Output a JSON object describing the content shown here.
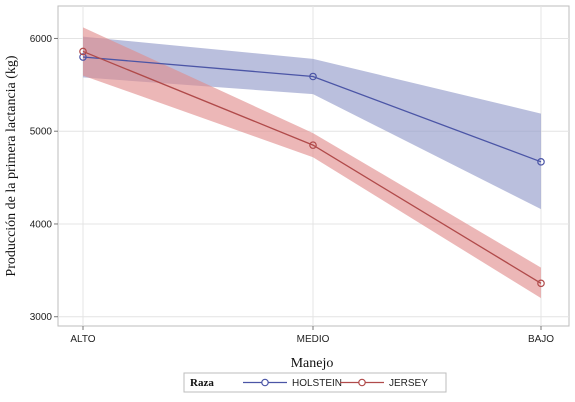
{
  "chart_data": {
    "type": "line",
    "xlabel": "Manejo",
    "ylabel": "Producción de la primera lactancia (kg)",
    "categories": [
      "ALTO",
      "MEDIO",
      "BAJO"
    ],
    "ylim": [
      2900,
      6350
    ],
    "yticks": [
      3000,
      4000,
      5000,
      6000
    ],
    "grid": true,
    "legend": {
      "title": "Raza",
      "placement": "bottom"
    },
    "series": [
      {
        "name": "HOLSTEIN",
        "color": "#4b55a6",
        "band_color": "#8f98c8",
        "values": [
          5800,
          5590,
          4670
        ],
        "lower": [
          5580,
          5400,
          4160
        ],
        "upper": [
          6020,
          5780,
          5190
        ]
      },
      {
        "name": "JERSEY",
        "color": "#b04a4a",
        "band_color": "#e08a8a",
        "values": [
          5860,
          4850,
          3360
        ],
        "lower": [
          5600,
          4720,
          3200
        ],
        "upper": [
          6120,
          4980,
          3530
        ]
      }
    ]
  }
}
